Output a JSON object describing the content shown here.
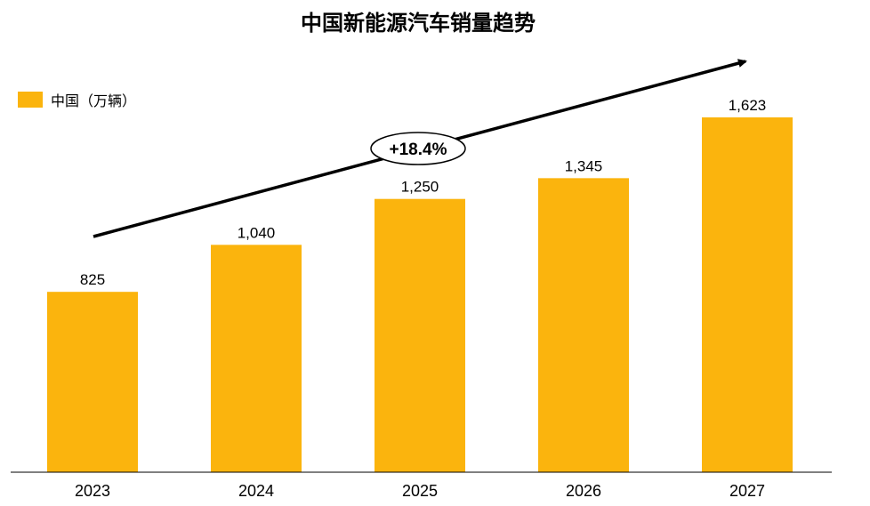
{
  "chart_data": {
    "type": "bar",
    "title": "中国新能源汽车销量趋势",
    "categories": [
      "2023",
      "2024",
      "2025",
      "2026",
      "2027"
    ],
    "series": [
      {
        "name": "中国（万辆）",
        "values": [
          825,
          1040,
          1250,
          1345,
          1623
        ]
      }
    ],
    "data_labels": [
      "825",
      "1,040",
      "1,250",
      "1,345",
      "1,623"
    ],
    "ylim": [
      0,
      1980
    ],
    "grid": false,
    "legend_position": "top-left",
    "annotation": "+18.4%",
    "bar_color": "#FBB40D",
    "text_color": "#000000"
  }
}
